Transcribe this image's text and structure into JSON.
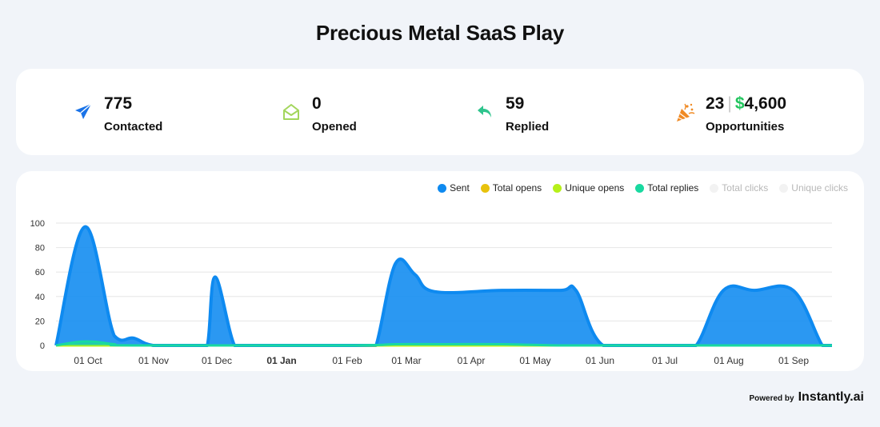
{
  "page": {
    "title": "Precious Metal SaaS Play"
  },
  "stats": {
    "contacted": {
      "value": "775",
      "label": "Contacted",
      "icon": "paper-plane-icon",
      "color": "#1a73e8"
    },
    "opened": {
      "value": "0",
      "label": "Opened",
      "icon": "envelope-open-icon",
      "color": "#a3d65c"
    },
    "replied": {
      "value": "59",
      "label": "Replied",
      "icon": "reply-arrow-icon",
      "color": "#2fc48d"
    },
    "opportunities": {
      "count": "23",
      "separator": "|",
      "currency": "$",
      "amount": "4,600",
      "label": "Opportunities",
      "icon": "party-popper-icon",
      "color": "#f08a24"
    }
  },
  "legend": [
    {
      "label": "Sent",
      "color": "#0e8af0",
      "active": true
    },
    {
      "label": "Total opens",
      "color": "#e8c20c",
      "active": true
    },
    {
      "label": "Unique opens",
      "color": "#b6f01a",
      "active": true
    },
    {
      "label": "Total replies",
      "color": "#19d9a0",
      "active": true
    },
    {
      "label": "Total clicks",
      "color": "#f2f2f2",
      "active": false
    },
    {
      "label": "Unique clicks",
      "color": "#f2f2f2",
      "active": false
    }
  ],
  "chart_data": {
    "type": "area",
    "ylim": [
      0,
      100
    ],
    "yticks": [
      0,
      20,
      40,
      60,
      80,
      100
    ],
    "xlabels": [
      "01 Oct",
      "01 Nov",
      "01 Dec",
      "01 Jan",
      "01 Feb",
      "01 Mar",
      "01 Apr",
      "01 May",
      "01 Jun",
      "01 Jul",
      "01 Aug",
      "01 Sep"
    ],
    "xlabel_bold": "01 Jan",
    "grid": true,
    "legend_position": "top-right",
    "series": [
      {
        "name": "Sent",
        "color": "#0e8af0",
        "points": [
          [
            0,
            0
          ],
          [
            15,
            97
          ],
          [
            30,
            8
          ],
          [
            40,
            6
          ],
          [
            50,
            0
          ],
          [
            68,
            0
          ],
          [
            72,
            0
          ],
          [
            78,
            0
          ],
          [
            82,
            56
          ],
          [
            92,
            0
          ],
          [
            100,
            0
          ],
          [
            130,
            0
          ],
          [
            150,
            0
          ],
          [
            160,
            0
          ],
          [
            165,
            0
          ],
          [
            175,
            67
          ],
          [
            185,
            58
          ],
          [
            195,
            44
          ],
          [
            230,
            45
          ],
          [
            260,
            45
          ],
          [
            268,
            45
          ],
          [
            282,
            0
          ],
          [
            310,
            0
          ],
          [
            320,
            0
          ],
          [
            330,
            0
          ],
          [
            344,
            45
          ],
          [
            360,
            45
          ],
          [
            380,
            45
          ],
          [
            395,
            0
          ],
          [
            400,
            0
          ]
        ]
      },
      {
        "name": "Total opens",
        "color": "#e8c20c",
        "points": [
          [
            0,
            0
          ],
          [
            400,
            0
          ]
        ]
      },
      {
        "name": "Unique opens",
        "color": "#b6f01a",
        "points": [
          [
            0,
            0
          ],
          [
            400,
            0
          ]
        ]
      },
      {
        "name": "Total replies",
        "color": "#19d9a0",
        "points": [
          [
            0,
            0
          ],
          [
            12,
            3
          ],
          [
            20,
            3
          ],
          [
            30,
            1
          ],
          [
            40,
            0
          ],
          [
            150,
            0
          ],
          [
            175,
            1
          ],
          [
            200,
            1
          ],
          [
            230,
            1
          ],
          [
            260,
            0
          ],
          [
            290,
            0
          ],
          [
            310,
            0
          ],
          [
            400,
            0
          ]
        ]
      }
    ]
  },
  "footer": {
    "powered_by": "Powered by",
    "brand": "Instantly.ai"
  }
}
